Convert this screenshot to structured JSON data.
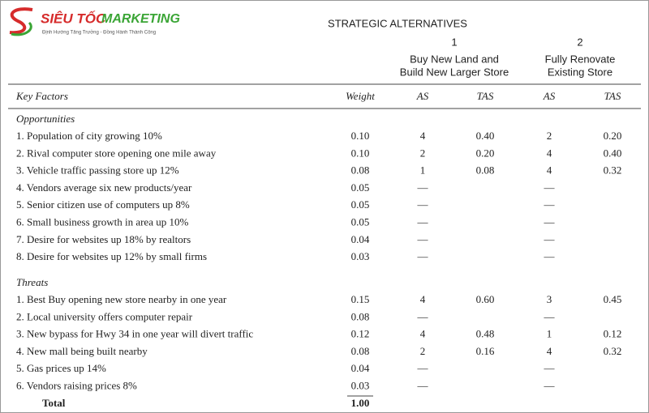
{
  "logo": {
    "brand_1": "SIÊU TỐC",
    "brand_2": "MARKETING",
    "tagline": "Định Hướng Tăng Trưởng - Đồng Hành Thành Công"
  },
  "header": {
    "title": "STRATEGIC ALTERNATIVES",
    "alternatives": [
      {
        "number": "1",
        "line_1": "Buy New Land and",
        "line_2": "Build New Larger Store"
      },
      {
        "number": "2",
        "line_1": "Fully Renovate",
        "line_2": "Existing Store"
      }
    ]
  },
  "table": {
    "columns": [
      "Key Factors",
      "Weight",
      "AS",
      "TAS",
      "AS",
      "TAS"
    ],
    "sections": [
      {
        "title": "Opportunities",
        "rows": [
          {
            "factor": "1. Population of city growing 10%",
            "weight": "0.10",
            "as1": "4",
            "tas1": "0.40",
            "as2": "2",
            "tas2": "0.20"
          },
          {
            "factor": "2. Rival computer store opening one mile away",
            "weight": "0.10",
            "as1": "2",
            "tas1": "0.20",
            "as2": "4",
            "tas2": "0.40"
          },
          {
            "factor": "3. Vehicle traffic passing store up 12%",
            "weight": "0.08",
            "as1": "1",
            "tas1": "0.08",
            "as2": "4",
            "tas2": "0.32"
          },
          {
            "factor": "4. Vendors average six new products/year",
            "weight": "0.05",
            "as1": "—",
            "as2": "—"
          },
          {
            "factor": "5. Senior citizen use of computers up 8%",
            "weight": "0.05",
            "as1": "—",
            "as2": "—"
          },
          {
            "factor": "6. Small business growth in area up 10%",
            "weight": "0.05",
            "as1": "—",
            "as2": "—"
          },
          {
            "factor": "7. Desire for websites up 18% by realtors",
            "weight": "0.04",
            "as1": "—",
            "as2": "—"
          },
          {
            "factor": "8. Desire for websites up 12% by small firms",
            "weight": "0.03",
            "as1": "—",
            "as2": "—"
          }
        ]
      },
      {
        "title": "Threats",
        "rows": [
          {
            "factor": "1. Best Buy opening new store nearby in one year",
            "weight": "0.15",
            "as1": "4",
            "tas1": "0.60",
            "as2": "3",
            "tas2": "0.45"
          },
          {
            "factor": "2. Local university offers computer repair",
            "weight": "0.08",
            "as1": "—",
            "as2": "—"
          },
          {
            "factor": "3. New bypass for Hwy 34 in one year will divert traffic",
            "weight": "0.12",
            "as1": "4",
            "tas1": "0.48",
            "as2": "1",
            "tas2": "0.12"
          },
          {
            "factor": "4. New mall being built nearby",
            "weight": "0.08",
            "as1": "2",
            "tas1": "0.16",
            "as2": "4",
            "tas2": "0.32"
          },
          {
            "factor": "5. Gas prices up 14%",
            "weight": "0.04",
            "as1": "—",
            "as2": "—"
          },
          {
            "factor": "6. Vendors raising prices 8%",
            "weight": "0.03",
            "as1": "—",
            "as2": "—"
          }
        ]
      }
    ],
    "total": {
      "label": "Total",
      "weight": "1.00"
    }
  }
}
